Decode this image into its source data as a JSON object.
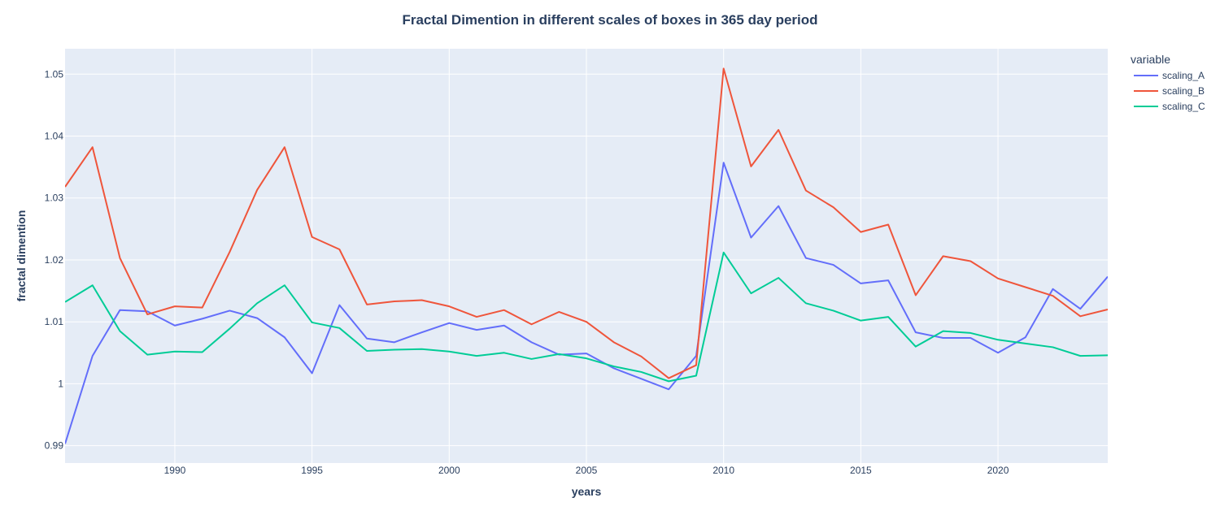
{
  "chart_data": {
    "type": "line",
    "title": "Fractal Dimention in different scales of boxes in 365 day period",
    "xlabel": "years",
    "ylabel": "fractal dimention",
    "legend_title": "variable",
    "legend_position": "top-right, outside plot",
    "grid": true,
    "xlim": [
      1986,
      2024
    ],
    "ylim": [
      0.9872,
      1.0541
    ],
    "x_ticks": [
      1990,
      1995,
      2000,
      2005,
      2010,
      2015,
      2020
    ],
    "y_ticks": [
      0.99,
      1.0,
      1.01,
      1.02,
      1.03,
      1.04,
      1.05
    ],
    "y_tick_labels": [
      "0.99",
      "1",
      "1.01",
      "1.02",
      "1.03",
      "1.04",
      "1.05"
    ],
    "x": [
      1986,
      1987,
      1988,
      1989,
      1990,
      1991,
      1992,
      1993,
      1994,
      1995,
      1996,
      1997,
      1998,
      1999,
      2000,
      2001,
      2002,
      2003,
      2004,
      2005,
      2006,
      2007,
      2008,
      2009,
      2010,
      2011,
      2012,
      2013,
      2014,
      2015,
      2016,
      2017,
      2018,
      2019,
      2020,
      2021,
      2022,
      2023,
      2024
    ],
    "series": [
      {
        "name": "scaling_A",
        "color": "#636efa",
        "values": [
          0.9903,
          1.0045,
          1.0119,
          1.0117,
          1.0094,
          1.0105,
          1.0118,
          1.0106,
          1.0075,
          1.0017,
          1.0127,
          1.0073,
          1.0067,
          1.0083,
          1.0098,
          1.0087,
          1.0094,
          1.0067,
          1.0047,
          1.0049,
          1.0025,
          1.0008,
          0.9991,
          1.0045,
          1.0357,
          1.0236,
          1.0287,
          1.0203,
          1.0192,
          1.0162,
          1.0167,
          1.0083,
          1.0074,
          1.0074,
          1.005,
          1.0075,
          1.0153,
          1.0121,
          1.0173
        ]
      },
      {
        "name": "scaling_B",
        "color": "#ef553b",
        "values": [
          1.0318,
          1.0382,
          1.0203,
          1.0112,
          1.0125,
          1.0123,
          1.0213,
          1.0313,
          1.0382,
          1.0237,
          1.0217,
          1.0128,
          1.0133,
          1.0135,
          1.0125,
          1.0108,
          1.0119,
          1.0096,
          1.0116,
          1.01,
          1.0067,
          1.0044,
          1.0009,
          1.003,
          1.0509,
          1.0351,
          1.041,
          1.0312,
          1.0285,
          1.0245,
          1.0257,
          1.0143,
          1.0206,
          1.0198,
          1.017,
          1.0156,
          1.0142,
          1.0109,
          1.012
        ]
      },
      {
        "name": "scaling_C",
        "color": "#00cc96",
        "values": [
          1.0132,
          1.0159,
          1.0085,
          1.0047,
          1.0052,
          1.0051,
          1.0089,
          1.013,
          1.0159,
          1.0099,
          1.009,
          1.0053,
          1.0055,
          1.0056,
          1.0052,
          1.0045,
          1.005,
          1.004,
          1.0048,
          1.0041,
          1.0028,
          1.0019,
          1.0004,
          1.0013,
          1.0212,
          1.0146,
          1.0171,
          1.013,
          1.0118,
          1.0102,
          1.0108,
          1.006,
          1.0085,
          1.0082,
          1.0071,
          1.0065,
          1.0059,
          1.0045,
          1.0046
        ]
      }
    ]
  }
}
